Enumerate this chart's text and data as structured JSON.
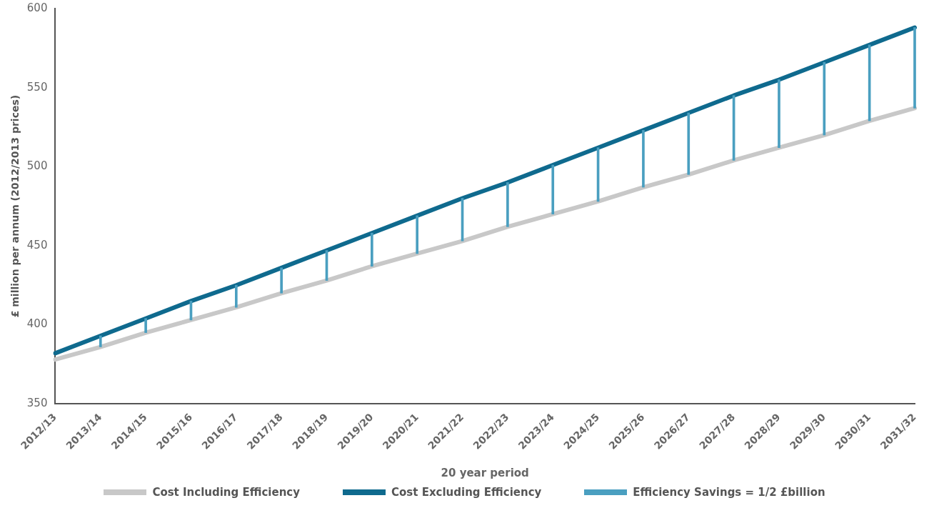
{
  "chart_data": {
    "type": "line",
    "xlabel": "20 year period",
    "ylabel": "£ million per annum (2012/2013 prices)",
    "categories": [
      "2012/13",
      "2013/14",
      "2014/15",
      "2015/16",
      "2016/17",
      "2017/18",
      "2018/19",
      "2019/20",
      "2020/21",
      "2021/22",
      "2022/23",
      "2023/24",
      "2024/25",
      "2025/26",
      "2026/27",
      "2027/28",
      "2028/29",
      "2029/30",
      "2030/31",
      "2031/32"
    ],
    "series": [
      {
        "name": "Cost Including Efficiency",
        "color": "#c8c8c8",
        "values": [
          378,
          386,
          395,
          403,
          411,
          420,
          428,
          437,
          445,
          453,
          462,
          470,
          478,
          487,
          495,
          504,
          512,
          520,
          529,
          537
        ]
      },
      {
        "name": "Cost Excluding Efficiency",
        "color": "#0f6a8e",
        "values": [
          382,
          393,
          404,
          415,
          425,
          436,
          447,
          458,
          469,
          480,
          490,
          501,
          512,
          523,
          534,
          545,
          555,
          566,
          577,
          588
        ]
      },
      {
        "name": "Efficiency Savings = 1/2 £billion",
        "type": "bar",
        "color": "#4a9fc0",
        "base": [
          null,
          386,
          395,
          403,
          411,
          420,
          428,
          437,
          445,
          453,
          462,
          470,
          478,
          487,
          495,
          504,
          512,
          520,
          529,
          537
        ],
        "values": [
          null,
          7,
          9,
          12,
          14,
          16,
          19,
          21,
          24,
          27,
          28,
          31,
          34,
          36,
          39,
          41,
          43,
          46,
          48,
          51
        ]
      }
    ],
    "ylim": [
      350,
      600
    ],
    "yticks": [
      350,
      400,
      450,
      500,
      550,
      600
    ],
    "grid": false,
    "legend": "bottom"
  }
}
